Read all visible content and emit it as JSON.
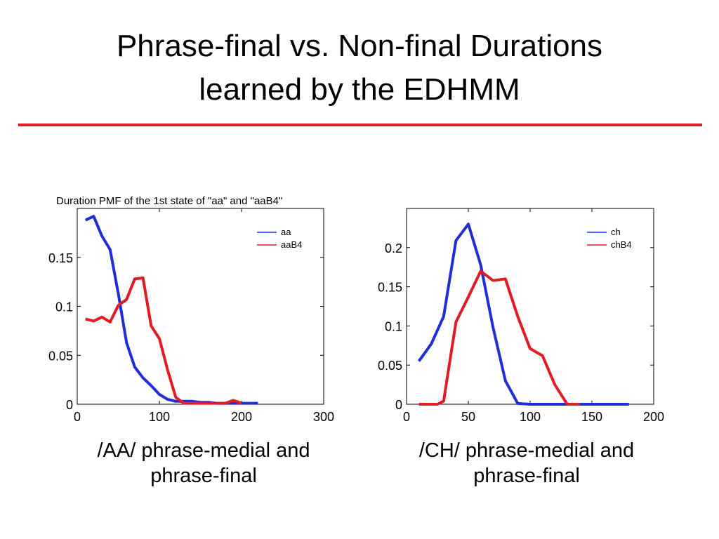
{
  "slide": {
    "title_line1": "Phrase-final vs. Non-final Durations",
    "title_line2": "learned by the EDHMM",
    "rule_color": "#e31b23",
    "caption_left_line1": "/AA/ phrase-medial and",
    "caption_left_line2": "phrase-final",
    "caption_right_line1": "/CH/ phrase-medial and",
    "caption_right_line2": "phrase-final"
  },
  "chart_data": [
    {
      "type": "line",
      "title": "Duration PMF of the 1st state of \"aa\" and \"aaB4\"",
      "xlabel": "",
      "ylabel": "",
      "xlim": [
        0,
        300
      ],
      "ylim": [
        0,
        0.2
      ],
      "xticks": [
        "0",
        "100",
        "200",
        "300"
      ],
      "yticks": [
        "0",
        "0.05",
        "0.1",
        "0.15"
      ],
      "legend_position": "top-right",
      "series": [
        {
          "name": "aa",
          "color": "#1f2fd6",
          "x": [
            10,
            20,
            30,
            40,
            50,
            60,
            70,
            80,
            90,
            100,
            110,
            120,
            130,
            140,
            150,
            160,
            170,
            180,
            190,
            200,
            210,
            220
          ],
          "y": [
            0.188,
            0.192,
            0.172,
            0.158,
            0.113,
            0.063,
            0.038,
            0.027,
            0.019,
            0.01,
            0.005,
            0.003,
            0.003,
            0.003,
            0.002,
            0.002,
            0.001,
            0.001,
            0.001,
            0.001,
            0.001,
            0.001
          ]
        },
        {
          "name": "aaB4",
          "color": "#e31b23",
          "x": [
            10,
            20,
            30,
            40,
            50,
            60,
            70,
            80,
            90,
            100,
            110,
            120,
            130,
            140,
            150,
            160,
            170,
            180,
            190,
            200
          ],
          "y": [
            0.087,
            0.085,
            0.089,
            0.084,
            0.101,
            0.107,
            0.128,
            0.129,
            0.08,
            0.067,
            0.035,
            0.007,
            0.001,
            0.001,
            0.001,
            0.001,
            0.001,
            0.001,
            0.004,
            0.001
          ]
        }
      ]
    },
    {
      "type": "line",
      "title": "",
      "xlabel": "",
      "ylabel": "",
      "xlim": [
        0,
        200
      ],
      "ylim": [
        0,
        0.25
      ],
      "xticks": [
        "0",
        "50",
        "100",
        "150",
        "200"
      ],
      "yticks": [
        "0",
        "0.05",
        "0.1",
        "0.15",
        "0.2"
      ],
      "legend_position": "top-right",
      "series": [
        {
          "name": "ch",
          "color": "#1f2fd6",
          "x": [
            10,
            20,
            30,
            40,
            50,
            60,
            70,
            80,
            90,
            100,
            110,
            120,
            130,
            140,
            150,
            160,
            170,
            180
          ],
          "y": [
            0.055,
            0.077,
            0.112,
            0.209,
            0.23,
            0.178,
            0.098,
            0.03,
            0.001,
            0,
            0,
            0,
            0,
            0,
            0,
            0,
            0,
            0
          ]
        },
        {
          "name": "chB4",
          "color": "#e31b23",
          "x": [
            10,
            20,
            25,
            30,
            40,
            50,
            60,
            70,
            80,
            90,
            100,
            110,
            120,
            130,
            140
          ],
          "y": [
            0,
            0,
            0,
            0.004,
            0.105,
            0.137,
            0.17,
            0.158,
            0.16,
            0.112,
            0.071,
            0.062,
            0.025,
            0,
            0
          ]
        }
      ]
    }
  ]
}
